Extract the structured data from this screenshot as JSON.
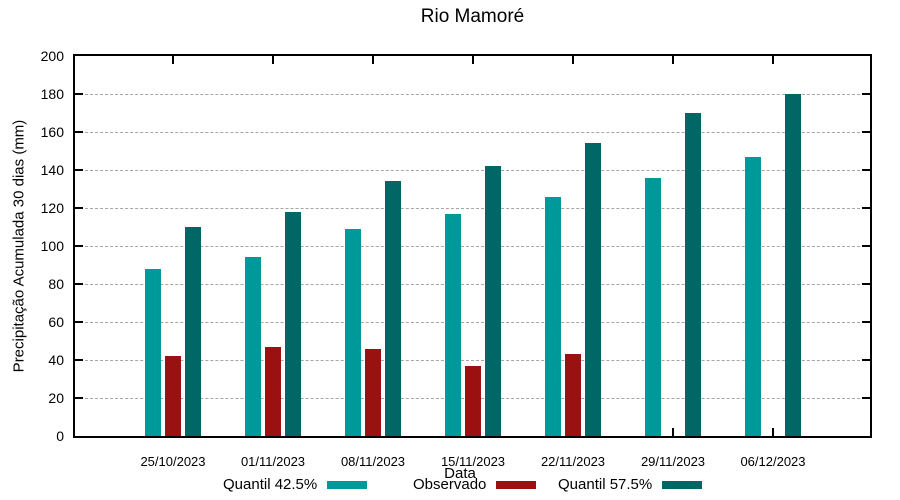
{
  "chart_data": {
    "type": "bar",
    "title": "Rio Mamoré",
    "xlabel": "Data",
    "ylabel": "Precipitação Acumulada 30 dias (mm)",
    "ylim": [
      0,
      200
    ],
    "ytick_step": 20,
    "yticks": [
      0,
      20,
      40,
      60,
      80,
      100,
      120,
      140,
      160,
      180,
      200
    ],
    "grid": "horizontal-dashed",
    "legend_position": "bottom",
    "categories": [
      "25/10/2023",
      "01/11/2023",
      "08/11/2023",
      "15/11/2023",
      "22/11/2023",
      "29/11/2023",
      "06/12/2023"
    ],
    "series": [
      {
        "name": "Quantil 42.5%",
        "color": "#009999",
        "values": [
          88,
          94,
          109,
          117,
          126,
          136,
          147
        ]
      },
      {
        "name": "Observado",
        "color": "#991111",
        "values": [
          42,
          47,
          46,
          37,
          43,
          null,
          null
        ]
      },
      {
        "name": "Quantil 57.5%",
        "color": "#006666",
        "values": [
          110,
          118,
          134,
          142,
          154,
          170,
          180
        ]
      }
    ]
  },
  "colors": {
    "background": "#ffffff",
    "axis": "#000000",
    "grid": "#a6a6a6",
    "text": "#000000"
  }
}
